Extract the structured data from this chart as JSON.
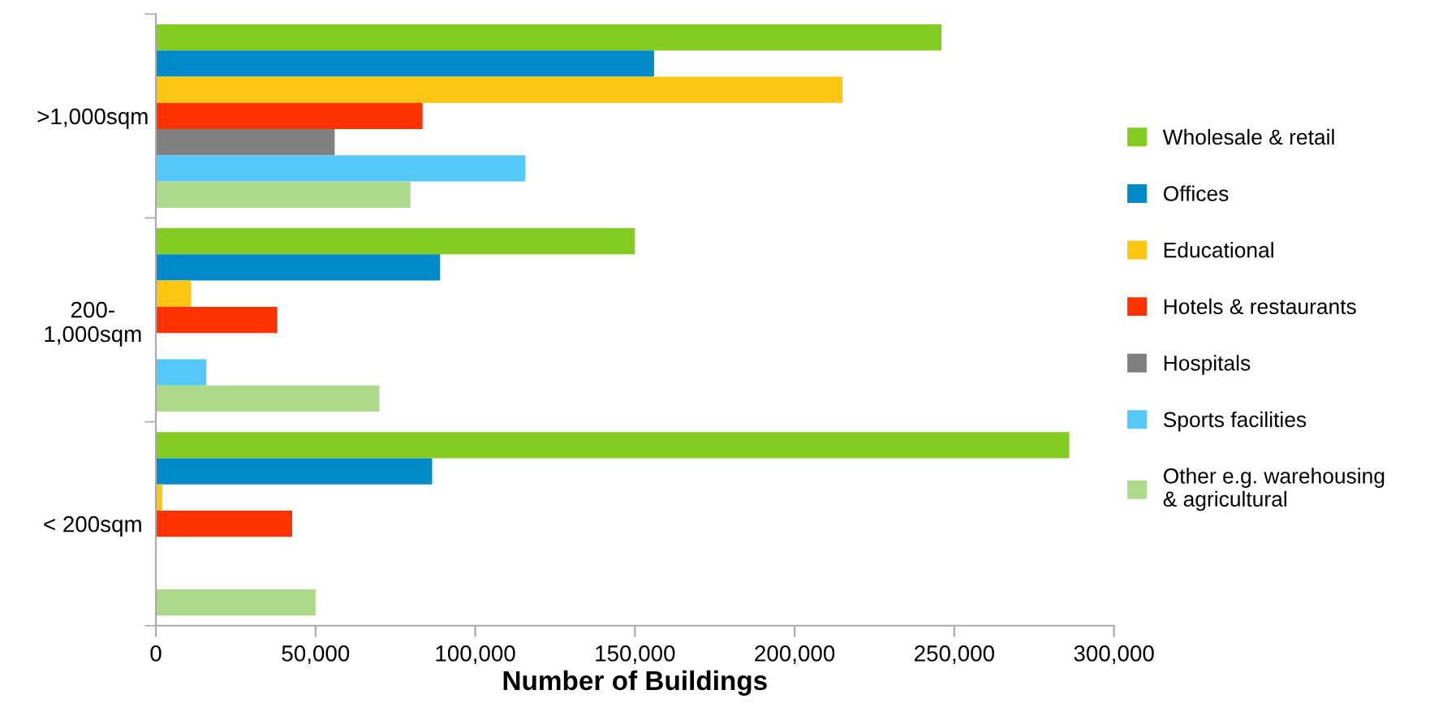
{
  "chart_data": {
    "type": "bar",
    "orientation": "horizontal",
    "xlabel": "Number of Buildings",
    "categories": [
      ">1,000sqm",
      "200-\n1,000sqm",
      "< 200sqm"
    ],
    "series": [
      {
        "name": "Wholesale & retail",
        "color": "#84cc22",
        "values": [
          246000,
          150000,
          286000
        ]
      },
      {
        "name": "Offices",
        "color": "#008aca",
        "values": [
          156000,
          89000,
          86500
        ]
      },
      {
        "name": "Educational",
        "color": "#fcc612",
        "values": [
          215000,
          11000,
          2000
        ]
      },
      {
        "name": "Hotels & restaurants",
        "color": "#ff3300",
        "values": [
          83500,
          38000,
          42700
        ]
      },
      {
        "name": "Hospitals",
        "color": "#808080",
        "values": [
          56000,
          null,
          0
        ]
      },
      {
        "name": "Sports facilities",
        "color": "#55c8fa",
        "values": [
          115700,
          15800,
          0
        ]
      },
      {
        "name": "Other e.g. warehousing\n& agricultural",
        "color": "#acda8a",
        "values": [
          79700,
          70000,
          50000
        ]
      }
    ],
    "xlim": [
      0,
      300000
    ],
    "xticks": [
      {
        "value": 0,
        "label": "0"
      },
      {
        "value": 50000,
        "label": "50,000"
      },
      {
        "value": 100000,
        "label": "100,000"
      },
      {
        "value": 150000,
        "label": "150,000"
      },
      {
        "value": 200000,
        "label": "200,000"
      },
      {
        "value": 250000,
        "label": "250,000"
      },
      {
        "value": 300000,
        "label": "300,000"
      }
    ],
    "grid": false,
    "legend": "right"
  }
}
